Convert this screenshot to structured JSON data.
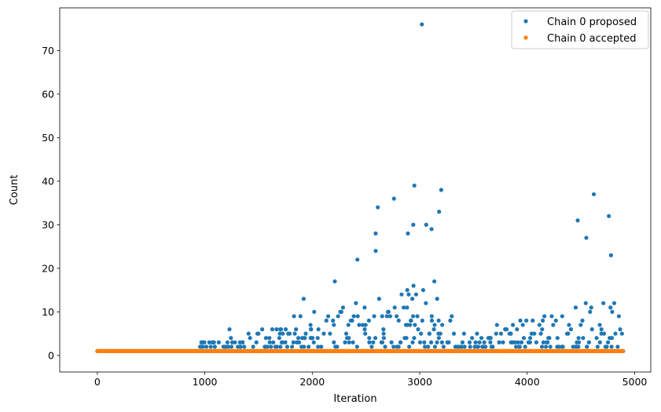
{
  "chart_data": {
    "type": "scatter",
    "xlabel": "Iteration",
    "ylabel": "Count",
    "xlim": [
      -350,
      5150
    ],
    "ylim": [
      -3.8,
      79.8
    ],
    "xticks": [
      0,
      1000,
      2000,
      3000,
      4000,
      5000
    ],
    "yticks": [
      0,
      10,
      20,
      30,
      40,
      50,
      60,
      70
    ],
    "legend_position": "top-right",
    "colors": {
      "proposed": "#1f77b4",
      "accepted": "#ff7f0e"
    },
    "iterations": [
      0,
      4890
    ],
    "proposed_count_one_until": 940,
    "series": [
      {
        "name": "Chain 0 proposed",
        "color": "#1f77b4",
        "notable_points": [
          {
            "x": 3020,
            "y": 76
          },
          {
            "x": 2950,
            "y": 39
          },
          {
            "x": 3200,
            "y": 38
          },
          {
            "x": 4620,
            "y": 37
          },
          {
            "x": 2760,
            "y": 36
          },
          {
            "x": 2610,
            "y": 34
          },
          {
            "x": 3180,
            "y": 33
          },
          {
            "x": 4760,
            "y": 32
          },
          {
            "x": 4470,
            "y": 31
          },
          {
            "x": 2940,
            "y": 30
          },
          {
            "x": 3060,
            "y": 30
          },
          {
            "x": 3110,
            "y": 29
          },
          {
            "x": 2590,
            "y": 28
          },
          {
            "x": 2890,
            "y": 28
          },
          {
            "x": 4550,
            "y": 27
          },
          {
            "x": 2590,
            "y": 24
          },
          {
            "x": 4780,
            "y": 23
          },
          {
            "x": 2420,
            "y": 22
          },
          {
            "x": 2210,
            "y": 17
          },
          {
            "x": 1920,
            "y": 13
          },
          {
            "x": 1830,
            "y": 9
          },
          {
            "x": 1230,
            "y": 6
          },
          {
            "x": 1130,
            "y": 3
          }
        ]
      },
      {
        "name": "Chain 0 accepted",
        "color": "#ff7f0e",
        "constant_value": 1
      }
    ]
  }
}
